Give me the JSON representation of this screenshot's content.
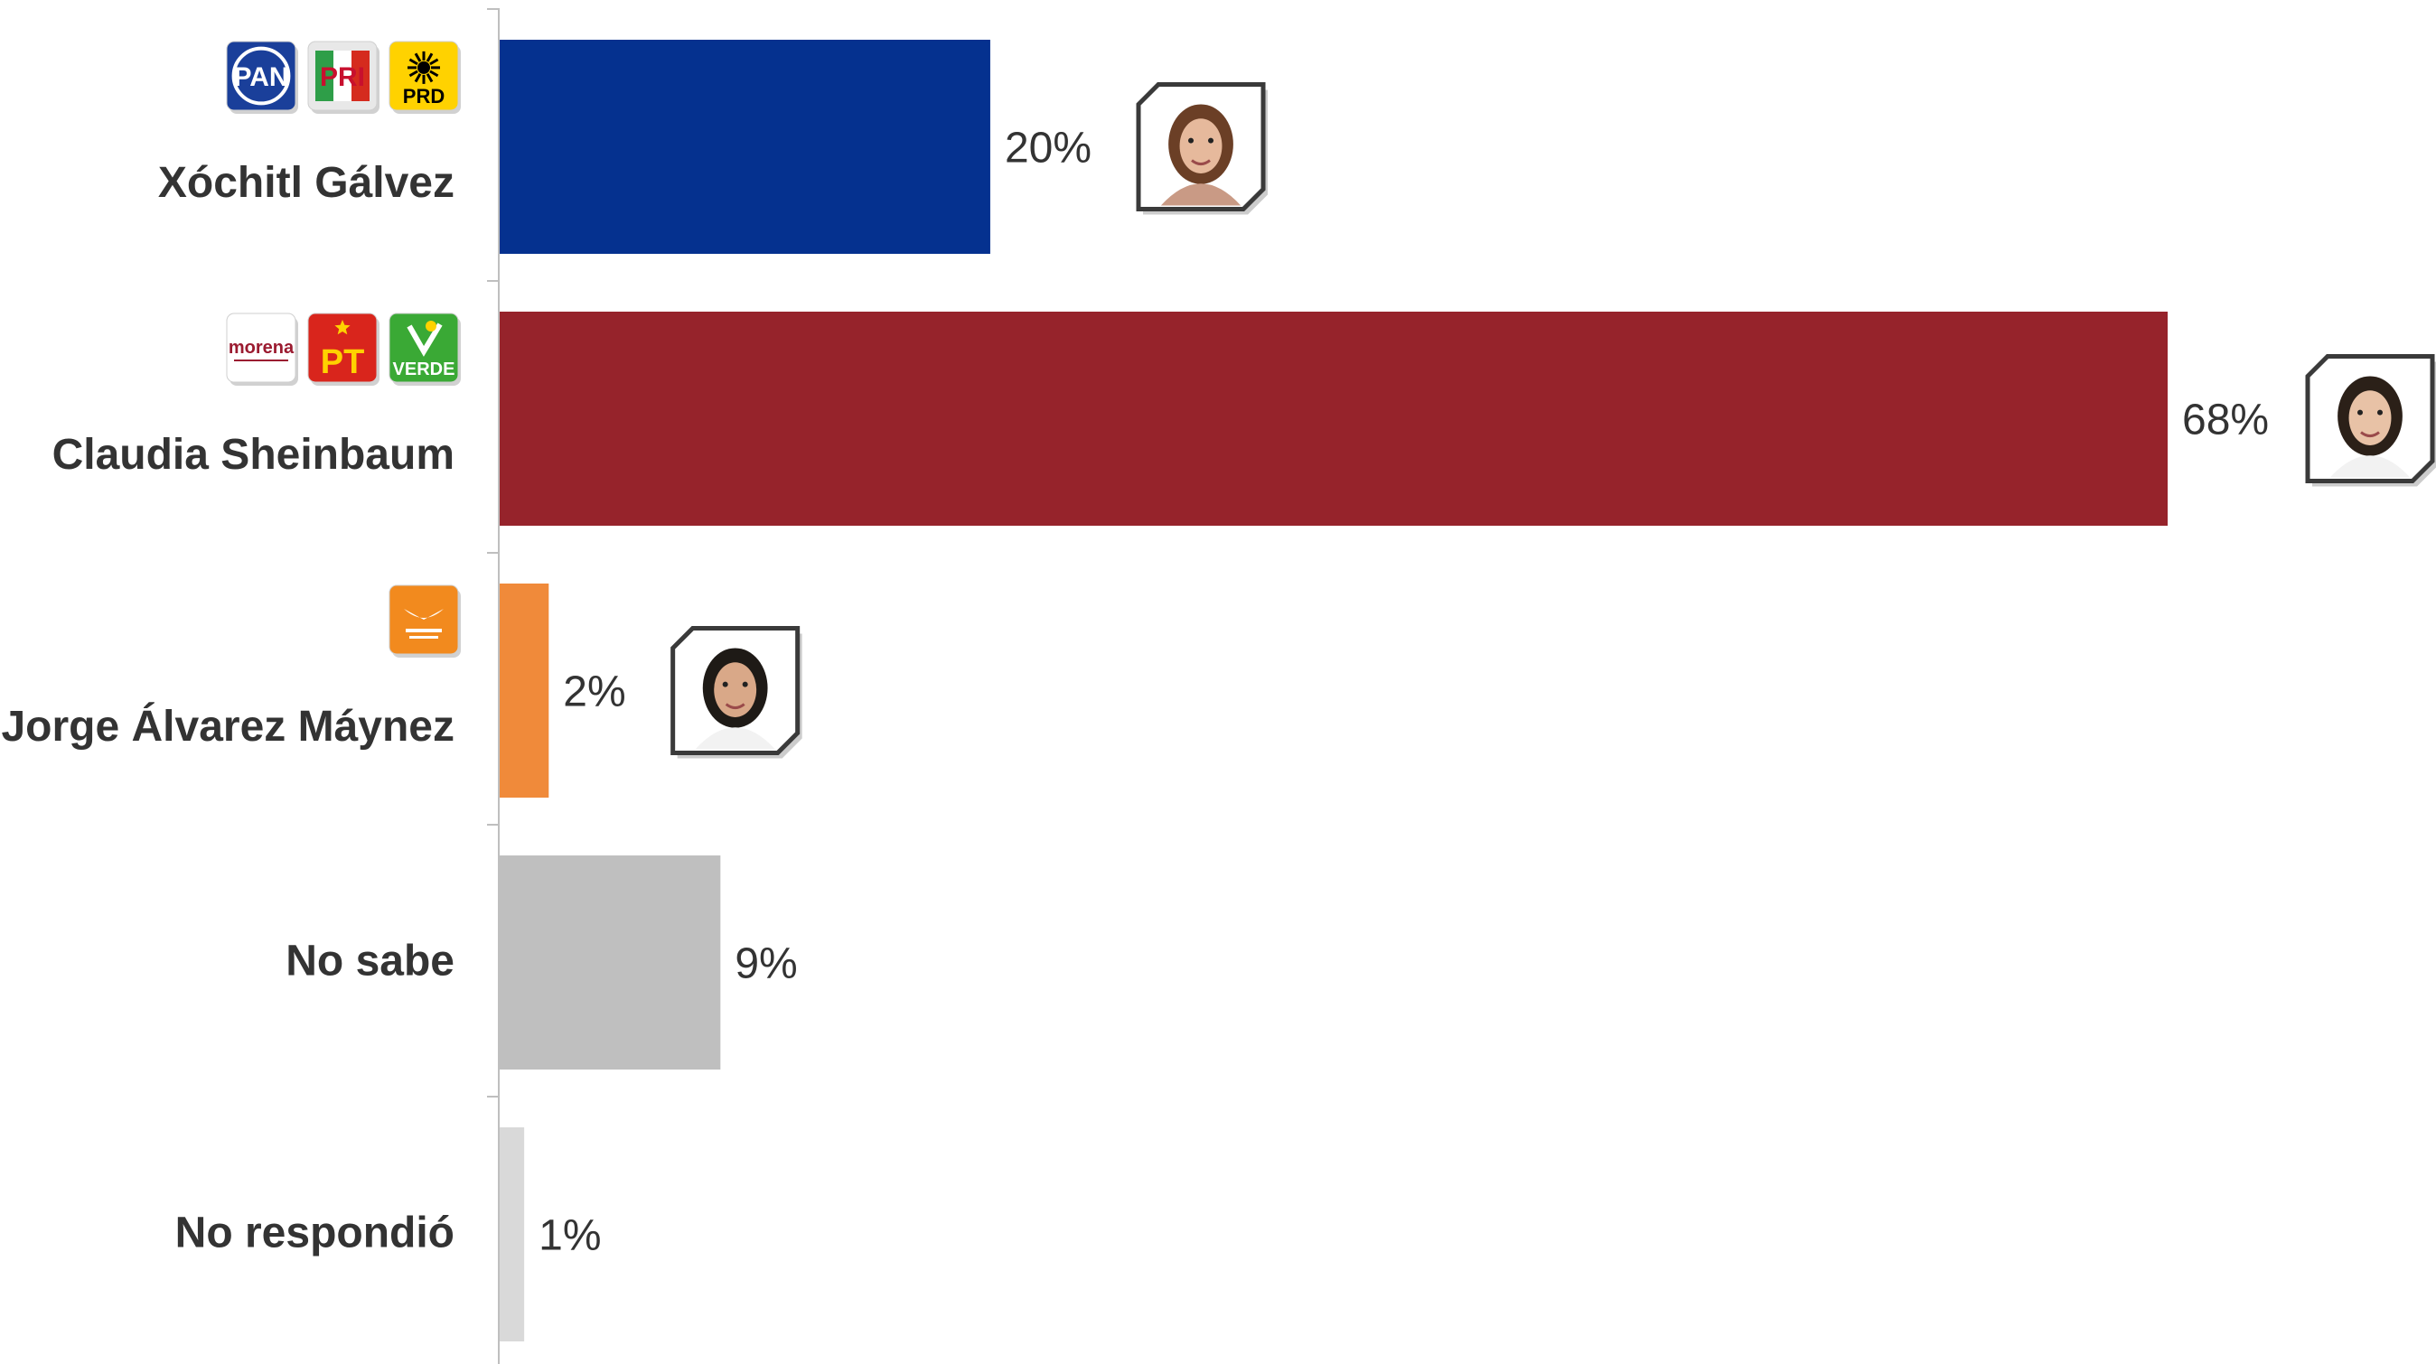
{
  "chart_data": {
    "type": "bar",
    "orientation": "horizontal",
    "title": "",
    "xlabel": "",
    "ylabel": "",
    "xlim": [
      0,
      68
    ],
    "grid": false,
    "legend": "none",
    "categories": [
      "Xóchitl Gálvez",
      "Claudia Sheinbaum",
      "Jorge Álvarez Máynez",
      "No sabe",
      "No respondió"
    ],
    "values": [
      20,
      68,
      2,
      9,
      1
    ],
    "value_labels": [
      "20%",
      "68%",
      "2%",
      "9%",
      "1%"
    ],
    "colors": [
      "#05318f",
      "#96232b",
      "#f08a3a",
      "#bfbfbf",
      "#d9d9d9"
    ],
    "has_photo": [
      true,
      true,
      true,
      false,
      false
    ],
    "logos": [
      [
        {
          "icon": "pan-logo",
          "text": "PAN",
          "bg": "#1a3f9a",
          "fg": "#ffffff"
        },
        {
          "icon": "pri-logo",
          "text": "PRI",
          "bg": "#e8e8e8",
          "fg": "#c8102e"
        },
        {
          "icon": "prd-logo",
          "text": "PRD",
          "bg": "#ffd200",
          "fg": "#000000"
        }
      ],
      [
        {
          "icon": "morena-logo",
          "text": "morena",
          "bg": "#ffffff",
          "fg": "#9b1b30"
        },
        {
          "icon": "pt-logo",
          "text": "PT",
          "bg": "#d9251c",
          "fg": "#ffd200"
        },
        {
          "icon": "verde-logo",
          "text": "VERDE",
          "bg": "#3aa935",
          "fg": "#ffffff"
        }
      ],
      [
        {
          "icon": "movimiento-ciudadano-logo",
          "text": "",
          "bg": "#f28a1e",
          "fg": "#ffffff"
        }
      ],
      [],
      []
    ]
  }
}
